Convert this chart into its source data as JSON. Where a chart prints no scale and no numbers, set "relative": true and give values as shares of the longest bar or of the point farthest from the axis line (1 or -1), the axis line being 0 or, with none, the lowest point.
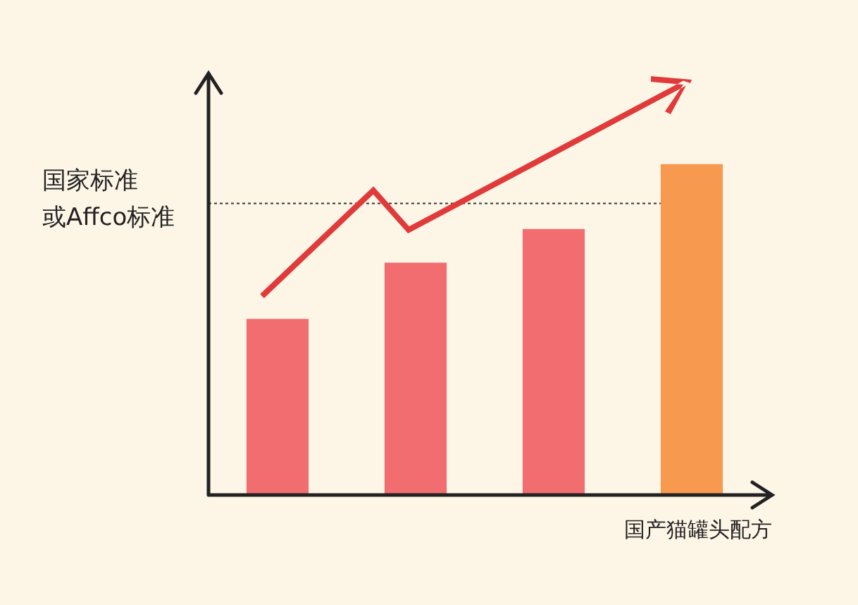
{
  "chart_data": {
    "type": "bar",
    "relative": true,
    "categories": [
      null,
      null,
      null,
      null
    ],
    "values": [
      0.532,
      0.702,
      0.804,
      1
    ],
    "colors": [
      "#f26d6f",
      "#f26d6f",
      "#f26d6f",
      "#f79a4f"
    ],
    "xlabel": "国产猫罐头配方",
    "ref_lines": [
      {
        "axis": "y",
        "value": 0.881,
        "label": "国家标准或Affco标准",
        "color": "#333333",
        "line_style": "dotted"
      }
    ],
    "legend": false
  }
}
